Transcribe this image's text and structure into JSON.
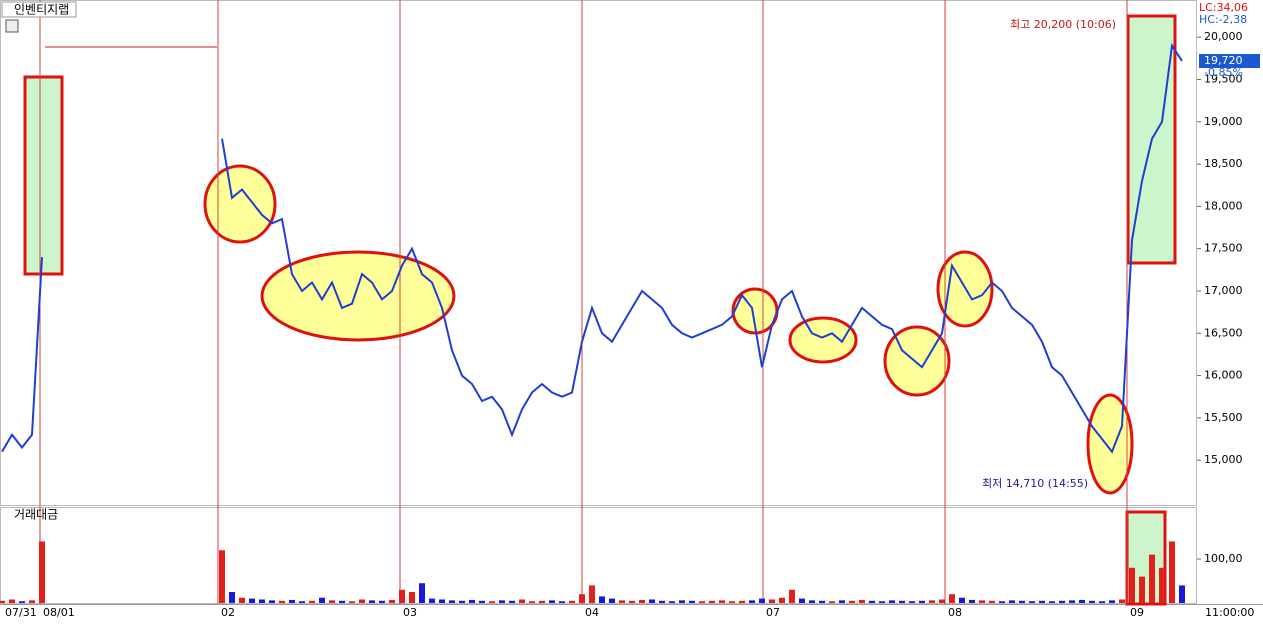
{
  "chart_data": [
    {
      "type": "line",
      "title": "인벤티지랩",
      "color": "#1f3fd0",
      "high_label": "최고 20,200 (10:06)",
      "low_label": "최저 14,710 (14:55)",
      "lc_label": "LC:34,06",
      "hc_label": "HC:-2,38",
      "last_price_label": "19,720",
      "change_label": "-0,85%",
      "x": [
        0,
        1,
        2,
        3,
        4,
        5,
        6,
        7,
        8,
        9,
        10,
        11,
        12,
        13,
        14,
        15,
        16,
        17,
        18,
        19,
        20,
        21,
        22,
        23,
        24,
        25,
        26,
        27,
        28,
        29,
        30,
        31,
        32,
        33,
        34,
        35,
        36,
        37,
        38,
        39,
        40,
        41,
        42,
        43,
        44,
        45,
        46,
        47,
        48,
        49,
        50,
        51,
        52,
        53,
        54,
        55,
        56,
        57,
        58,
        59,
        60,
        61,
        62,
        63,
        64,
        65,
        66,
        67,
        68,
        69,
        70,
        71,
        72,
        73,
        74,
        75,
        76,
        77,
        78,
        79,
        80,
        81,
        82,
        83,
        84,
        85,
        86,
        87,
        88,
        89,
        90,
        91,
        92,
        93,
        94,
        95,
        96,
        97,
        98,
        99,
        100,
        101,
        102,
        103,
        104,
        105,
        106,
        107,
        108,
        109,
        110,
        111,
        112,
        113,
        114,
        115,
        116,
        117,
        118
      ],
      "values": [
        15100,
        15300,
        15150,
        15300,
        17400,
        null,
        null,
        null,
        null,
        null,
        null,
        null,
        null,
        null,
        null,
        null,
        null,
        null,
        null,
        null,
        null,
        null,
        18800,
        18100,
        18200,
        18050,
        17900,
        17800,
        17850,
        17200,
        17000,
        17100,
        16900,
        17100,
        16800,
        16850,
        17200,
        17100,
        16900,
        17000,
        17300,
        17500,
        17200,
        17100,
        16800,
        16300,
        16000,
        15900,
        15700,
        15750,
        15600,
        15300,
        15600,
        15800,
        15900,
        15800,
        15750,
        15800,
        16400,
        16800,
        16500,
        16400,
        16600,
        16800,
        17000,
        16900,
        16800,
        16600,
        16500,
        16450,
        16500,
        16550,
        16600,
        16700,
        16950,
        16800,
        16100,
        16600,
        16900,
        17000,
        16700,
        16500,
        16450,
        16500,
        16400,
        16600,
        16800,
        16700,
        16600,
        16550,
        16300,
        16200,
        16100,
        16300,
        16500,
        17300,
        17100,
        16900,
        16950,
        17100,
        17000,
        16800,
        16700,
        16600,
        16400,
        16100,
        16000,
        15800,
        15600,
        15400,
        15250,
        15100,
        15400,
        17600,
        18300,
        18800,
        19000,
        19900,
        19720
      ],
      "xlim": [
        0,
        119.5
      ],
      "ylim": [
        14470,
        20440
      ],
      "yticks": [
        {
          "value": 15000,
          "label": "15,000"
        },
        {
          "value": 15500,
          "label": "15,500"
        },
        {
          "value": 16000,
          "label": "16,000"
        },
        {
          "value": 16500,
          "label": "16,500"
        },
        {
          "value": 17000,
          "label": "17,000"
        },
        {
          "value": 17500,
          "label": "17,500"
        },
        {
          "value": 18000,
          "label": "18,000"
        },
        {
          "value": 18500,
          "label": "18,500"
        },
        {
          "value": 19000,
          "label": "19,000"
        },
        {
          "value": 19500,
          "label": "19,500"
        },
        {
          "value": 20000,
          "label": "20,000"
        }
      ]
    },
    {
      "type": "bar",
      "title": "거래대금",
      "up_color": "#e0201b",
      "down_color": "#1a1adb",
      "time_label": "11:00:00",
      "x": [
        0,
        1,
        2,
        3,
        4,
        5,
        6,
        7,
        8,
        9,
        10,
        11,
        12,
        13,
        14,
        15,
        16,
        17,
        18,
        19,
        20,
        21,
        22,
        23,
        24,
        25,
        26,
        27,
        28,
        29,
        30,
        31,
        32,
        33,
        34,
        35,
        36,
        37,
        38,
        39,
        40,
        41,
        42,
        43,
        44,
        45,
        46,
        47,
        48,
        49,
        50,
        51,
        52,
        53,
        54,
        55,
        56,
        57,
        58,
        59,
        60,
        61,
        62,
        63,
        64,
        65,
        66,
        67,
        68,
        69,
        70,
        71,
        72,
        73,
        74,
        75,
        76,
        77,
        78,
        79,
        80,
        81,
        82,
        83,
        84,
        85,
        86,
        87,
        88,
        89,
        90,
        91,
        92,
        93,
        94,
        95,
        96,
        97,
        98,
        99,
        100,
        101,
        102,
        103,
        104,
        105,
        106,
        107,
        108,
        109,
        110,
        111,
        112,
        113,
        114,
        115,
        116,
        117,
        118
      ],
      "values": [
        5,
        8,
        4,
        6,
        140,
        null,
        null,
        null,
        null,
        null,
        null,
        null,
        null,
        null,
        null,
        null,
        null,
        null,
        null,
        null,
        null,
        null,
        120,
        25,
        12,
        10,
        8,
        6,
        5,
        7,
        4,
        5,
        12,
        6,
        5,
        4,
        8,
        6,
        5,
        7,
        30,
        25,
        45,
        10,
        8,
        6,
        5,
        7,
        5,
        4,
        6,
        5,
        8,
        4,
        5,
        6,
        4,
        5,
        20,
        40,
        15,
        10,
        6,
        5,
        7,
        8,
        5,
        4,
        6,
        5,
        4,
        5,
        6,
        4,
        5,
        6,
        10,
        8,
        12,
        30,
        10,
        6,
        5,
        4,
        6,
        5,
        7,
        5,
        4,
        6,
        5,
        4,
        5,
        6,
        8,
        20,
        12,
        7,
        6,
        5,
        4,
        6,
        5,
        4,
        5,
        4,
        5,
        6,
        7,
        5,
        4,
        6,
        8,
        80,
        60,
        110,
        80,
        140,
        40
      ],
      "xlim": [
        0,
        119.5
      ],
      "ylim": [
        0,
        216
      ],
      "yticks": [
        {
          "value": 100,
          "label": "100,00"
        }
      ],
      "xticks": [
        {
          "value": 0,
          "label": "07/31"
        },
        {
          "value": 3.8,
          "label": "08/01"
        },
        {
          "value": 21.6,
          "label": "02"
        },
        {
          "value": 39.8,
          "label": "03"
        },
        {
          "value": 58,
          "label": "04"
        },
        {
          "value": 76.1,
          "label": "07"
        },
        {
          "value": 94.3,
          "label": "08"
        },
        {
          "value": 112.5,
          "label": "09"
        }
      ]
    }
  ]
}
